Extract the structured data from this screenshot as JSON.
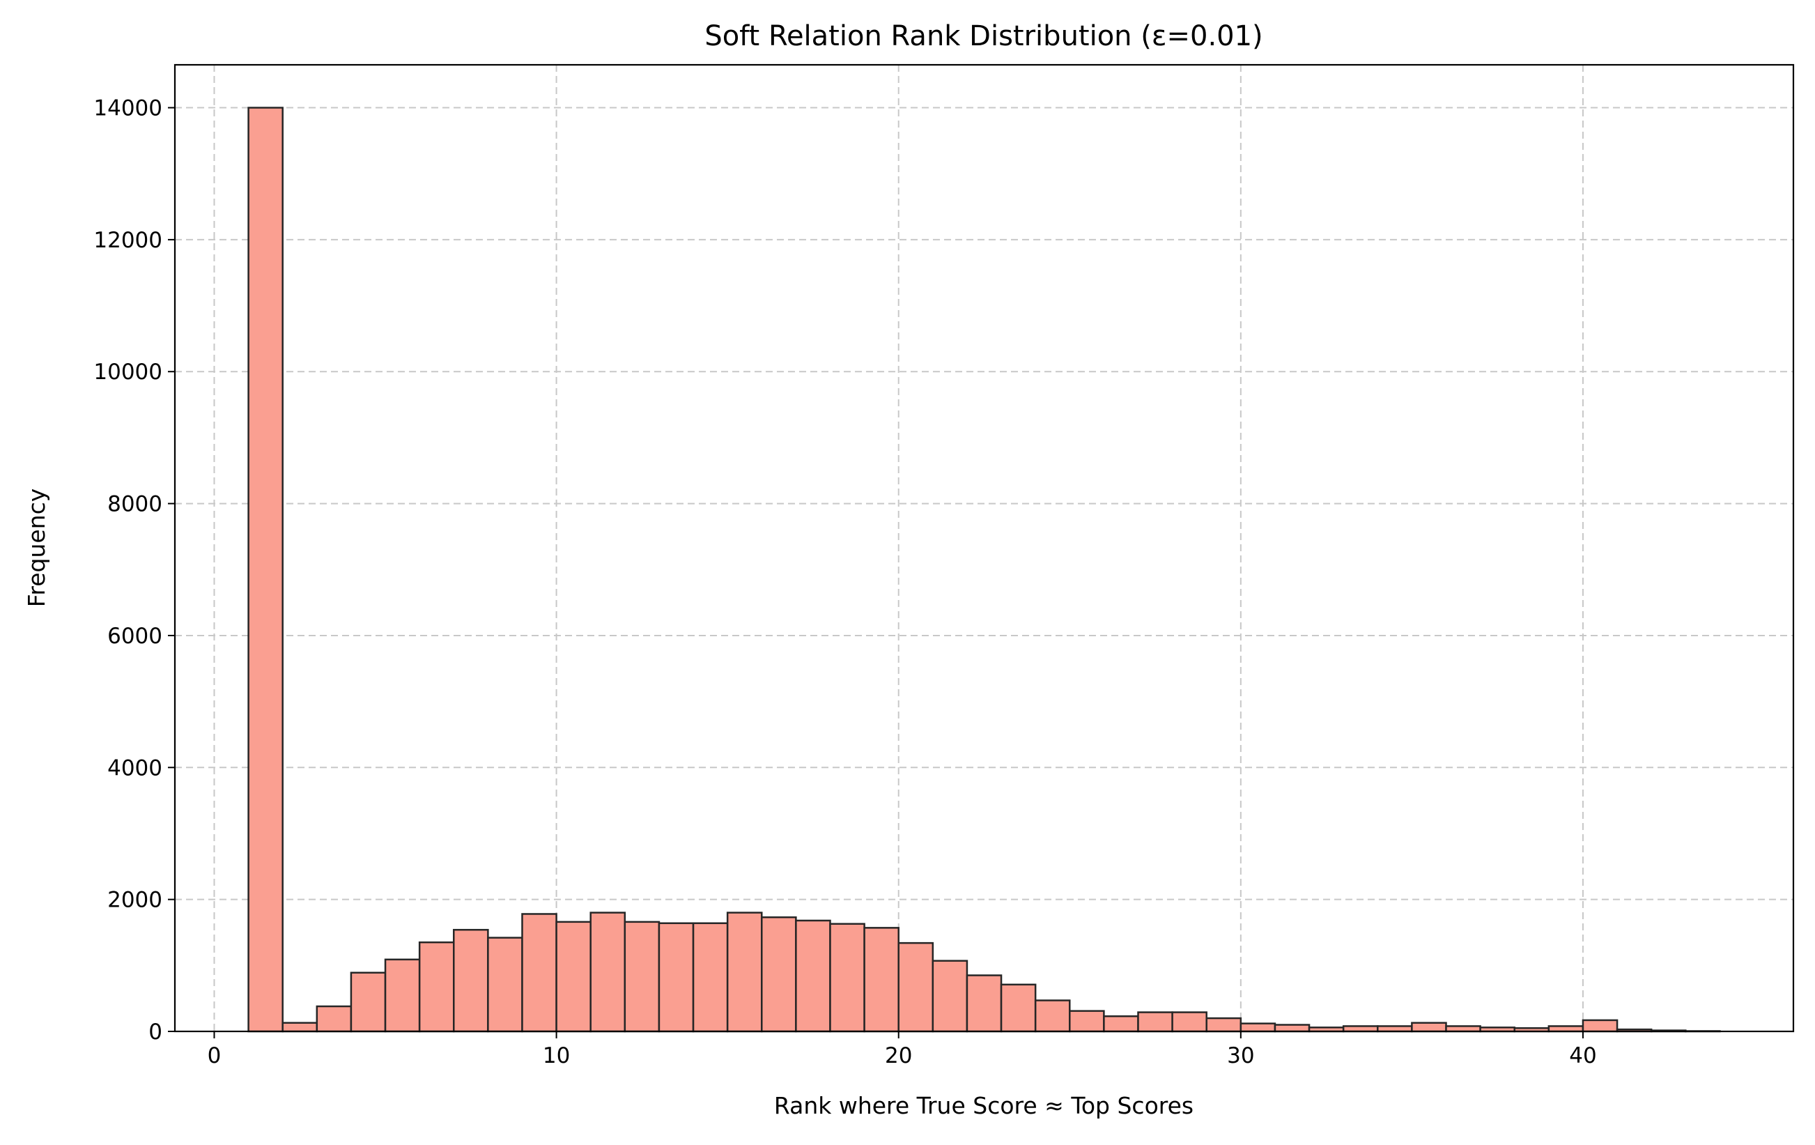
{
  "chart_data": {
    "type": "bar",
    "title": "Soft Relation Rank Distribution (ε=0.01)",
    "xlabel": "Rank where True Score ≈ Top Scores",
    "ylabel": "Frequency",
    "xlim": [
      -1.15,
      46.15
    ],
    "ylim": [
      0,
      14650
    ],
    "xticks": [
      0,
      10,
      20,
      30,
      40
    ],
    "yticks": [
      0,
      2000,
      4000,
      6000,
      8000,
      10000,
      12000,
      14000
    ],
    "grid": true,
    "bin_width": 1,
    "bin_start": 1,
    "values": [
      14000,
      130,
      380,
      890,
      1090,
      1350,
      1540,
      1420,
      1780,
      1660,
      1800,
      1660,
      1640,
      1640,
      1800,
      1730,
      1680,
      1630,
      1570,
      1340,
      1070,
      850,
      710,
      470,
      310,
      230,
      290,
      290,
      200,
      120,
      100,
      60,
      80,
      80,
      130,
      80,
      60,
      50,
      80,
      170,
      30,
      15,
      5
    ]
  },
  "style": {
    "bar_fill": "#fa9f91",
    "bar_edge": "#262626",
    "grid_color": "#c8c8c8",
    "axis_color": "#000000"
  }
}
